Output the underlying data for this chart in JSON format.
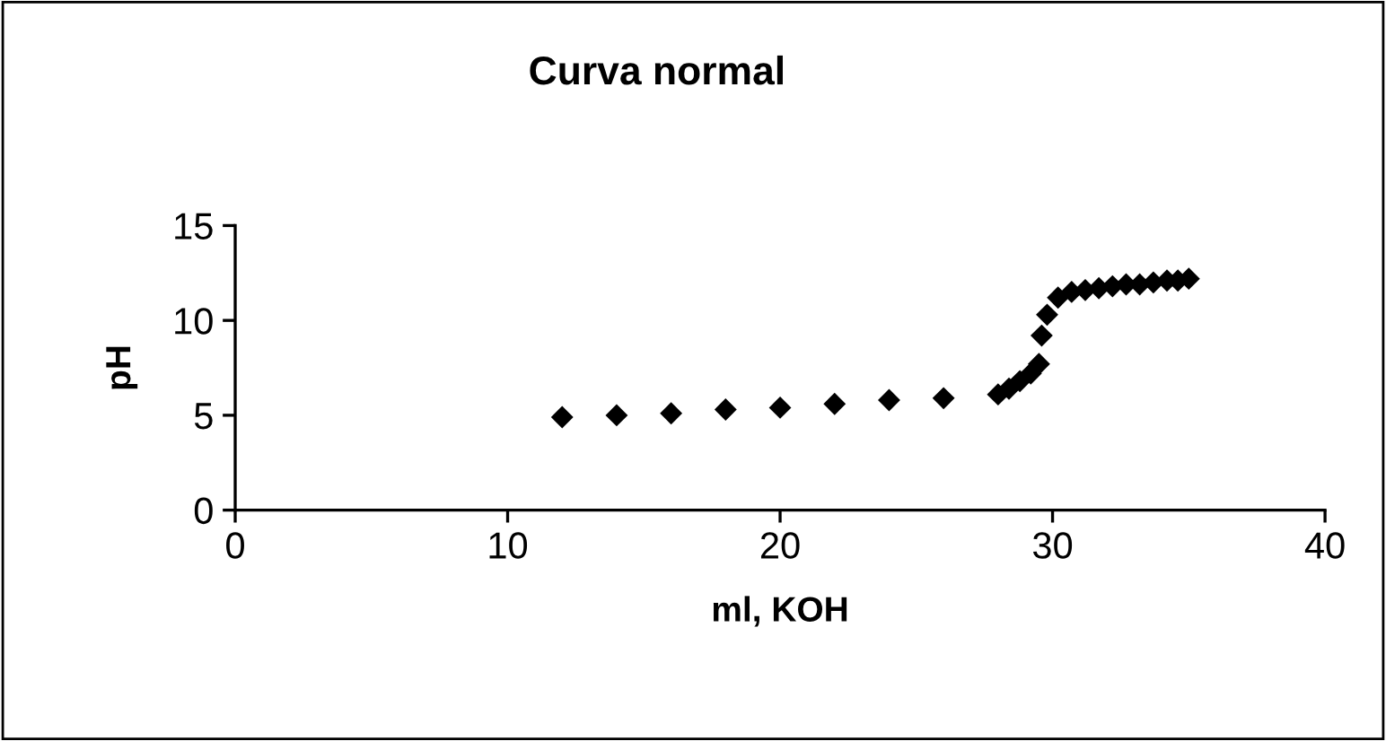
{
  "chart_data": {
    "type": "scatter",
    "title": "Curva normal",
    "xlabel": "ml, KOH",
    "ylabel": "pH",
    "xlim": [
      0,
      40
    ],
    "xticks": [
      0,
      10,
      20,
      30,
      40
    ],
    "ylim": [
      0,
      15
    ],
    "yticks": [
      0,
      5,
      10,
      15
    ],
    "grid": false,
    "legend": false,
    "marker": "diamond",
    "series": [
      {
        "color": "#000000",
        "x": [
          12,
          14,
          16,
          18,
          20,
          22,
          24,
          26,
          28.0,
          28.4,
          28.8,
          29.2,
          29.5,
          29.6,
          29.8,
          30.2,
          30.7,
          31.2,
          31.7,
          32.2,
          32.7,
          33.2,
          33.7,
          34.2,
          34.6,
          35.0
        ],
        "values": [
          4.9,
          5.0,
          5.1,
          5.3,
          5.4,
          5.6,
          5.8,
          5.9,
          6.1,
          6.4,
          6.8,
          7.2,
          7.7,
          9.2,
          10.3,
          11.2,
          11.5,
          11.6,
          11.7,
          11.8,
          11.9,
          11.9,
          12.0,
          12.1,
          12.1,
          12.2
        ]
      }
    ]
  }
}
